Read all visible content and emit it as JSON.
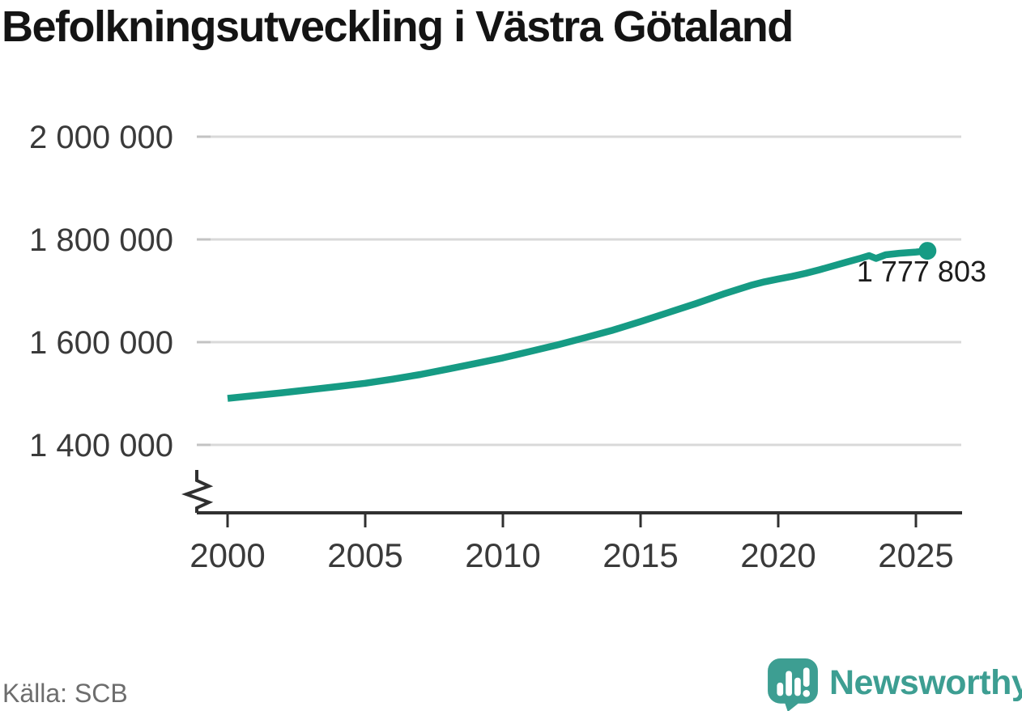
{
  "title": "Befolkningsutveckling i Västra Götaland",
  "source": "Källa: SCB",
  "branding": {
    "wordmark": "Newsworthy",
    "icon": "newsworthy-speech-bubble-bar-chart-icon",
    "color": "#3d9e92"
  },
  "colors": {
    "line": "#169b84",
    "gridline": "#d9d9d9",
    "gridline_stub": "#c3c3c3",
    "axis": "#303030",
    "tick_label": "#3a3a3a",
    "title_text": "#141414",
    "source_text": "#6d6d6d",
    "end_label_text": "#1d1d1d"
  },
  "chart_data": {
    "type": "line",
    "title": "Befolkningsutveckling i Västra Götaland",
    "xlabel": "",
    "ylabel": "",
    "xlim": [
      2000,
      2026.6
    ],
    "ylim": [
      1400000,
      2000000
    ],
    "grid": "horizontal",
    "axis_break_at_bottom": true,
    "legend": "none",
    "x_ticks": [
      2000,
      2005,
      2010,
      2015,
      2020,
      2025
    ],
    "x_tick_labels": [
      "2000",
      "2005",
      "2010",
      "2015",
      "2020",
      "2025"
    ],
    "y_ticks": [
      1400000,
      1600000,
      1800000,
      2000000
    ],
    "y_tick_labels": [
      "1 400 000",
      "1 600 000",
      "1 800 000",
      "2 000 000"
    ],
    "end_label": "1 777 803",
    "end_value": 1777803,
    "series": [
      {
        "points": [
          [
            2000.0,
            1490500
          ],
          [
            2001.0,
            1496000
          ],
          [
            2002.0,
            1501500
          ],
          [
            2003.0,
            1507500
          ],
          [
            2004.0,
            1513500
          ],
          [
            2005.0,
            1520000
          ],
          [
            2006.0,
            1528000
          ],
          [
            2007.0,
            1537000
          ],
          [
            2008.0,
            1547500
          ],
          [
            2009.0,
            1558500
          ],
          [
            2010.0,
            1569500
          ],
          [
            2011.0,
            1582000
          ],
          [
            2012.0,
            1595000
          ],
          [
            2013.0,
            1609000
          ],
          [
            2014.0,
            1623500
          ],
          [
            2015.0,
            1640000
          ],
          [
            2016.0,
            1657500
          ],
          [
            2017.0,
            1675000
          ],
          [
            2018.0,
            1693500
          ],
          [
            2019.0,
            1710500
          ],
          [
            2019.5,
            1717500
          ],
          [
            2020.0,
            1723000
          ],
          [
            2020.5,
            1728000
          ],
          [
            2021.0,
            1734000
          ],
          [
            2021.5,
            1741000
          ],
          [
            2022.0,
            1748500
          ],
          [
            2022.5,
            1756000
          ],
          [
            2023.0,
            1763500
          ],
          [
            2023.3,
            1768500
          ],
          [
            2023.55,
            1763000
          ],
          [
            2023.9,
            1770000
          ],
          [
            2024.4,
            1773000
          ],
          [
            2025.0,
            1775500
          ],
          [
            2025.42,
            1777803
          ]
        ]
      }
    ]
  }
}
